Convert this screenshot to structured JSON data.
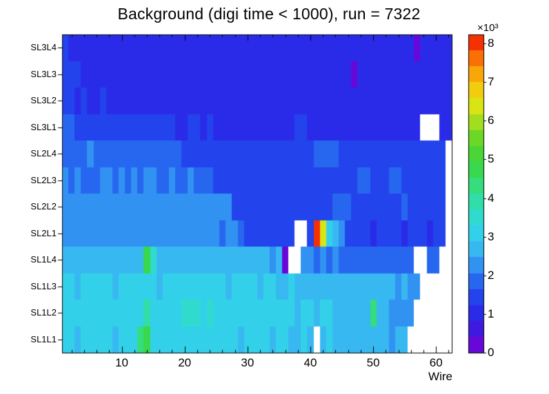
{
  "chart_data": {
    "type": "heatmap",
    "title": "Background (digi time < 1000), run = 7322",
    "xlabel": "Wire",
    "x_bins": 62,
    "x_min": 0.5,
    "x_max": 62.5,
    "x_ticks": [
      10,
      20,
      30,
      40,
      50,
      60
    ],
    "x_minor_step": 2,
    "z_min": 0,
    "z_max": 8234,
    "levels": 20,
    "colorbar": {
      "ticks": [
        0,
        1,
        2,
        3,
        4,
        5,
        6,
        7,
        8
      ],
      "tick_factor": 1000,
      "scale_label": "×10³",
      "position": "right"
    },
    "palette": [
      [
        0.0,
        "#7a00d5"
      ],
      [
        0.08,
        "#3c1be2"
      ],
      [
        0.14,
        "#2430ea"
      ],
      [
        0.2,
        "#2250ee"
      ],
      [
        0.26,
        "#2f86f2"
      ],
      [
        0.32,
        "#38b5f2"
      ],
      [
        0.38,
        "#33d4e8"
      ],
      [
        0.45,
        "#2fdfc0"
      ],
      [
        0.52,
        "#35dd80"
      ],
      [
        0.58,
        "#38d74b"
      ],
      [
        0.65,
        "#52d62a"
      ],
      [
        0.72,
        "#9cdc20"
      ],
      [
        0.78,
        "#e0e414"
      ],
      [
        0.84,
        "#f6c50c"
      ],
      [
        0.9,
        "#fb8f06"
      ],
      [
        0.95,
        "#fb5203"
      ],
      [
        1.0,
        "#ee1000"
      ]
    ],
    "row_order": "bottom-to-top",
    "rows": [
      {
        "label": "SL1L1",
        "values": [
          3000,
          2900,
          2760,
          2950,
          2900,
          3050,
          2920,
          2970,
          2860,
          3000,
          2950,
          3050,
          4400,
          4650,
          3250,
          3050,
          3000,
          2950,
          2900,
          3200,
          3250,
          3160,
          3200,
          3050,
          2950,
          2900,
          3000,
          2950,
          2860,
          2950,
          3000,
          2900,
          2950,
          2860,
          2900,
          2950,
          2800,
          2860,
          2900,
          2850,
          null,
          2800,
          2900,
          2760,
          2800,
          2600,
          2520,
          2600,
          2560,
          2650,
          2500,
          2600,
          2460,
          2550,
          2500,
          null,
          null,
          null,
          null,
          null,
          null,
          null
        ]
      },
      {
        "label": "SL1L2",
        "values": [
          3000,
          2950,
          3100,
          2900,
          3050,
          2960,
          3000,
          2900,
          3060,
          3000,
          2950,
          3100,
          3050,
          4100,
          3200,
          3000,
          2950,
          3060,
          3000,
          3300,
          3350,
          3300,
          3250,
          3300,
          3000,
          2950,
          3060,
          3000,
          2900,
          3000,
          2950,
          3060,
          2900,
          3000,
          2950,
          2900,
          3000,
          2860,
          2950,
          2900,
          2860,
          2950,
          2900,
          2800,
          2860,
          2760,
          2800,
          2700,
          2760,
          4200,
          2650,
          2600,
          2460,
          2400,
          2360,
          2300,
          null,
          null,
          null,
          null,
          null,
          null
        ]
      },
      {
        "label": "SL1L3",
        "values": [
          2910,
          3000,
          2850,
          2950,
          3050,
          2910,
          3000,
          2950,
          2850,
          3000,
          2950,
          3050,
          3000,
          2910,
          2950,
          2850,
          3000,
          2910,
          2950,
          3000,
          3100,
          3050,
          2950,
          2910,
          3000,
          2950,
          2850,
          2910,
          3000,
          2950,
          2910,
          2850,
          2950,
          2910,
          2810,
          2850,
          2910,
          2750,
          2850,
          2810,
          2750,
          2850,
          2810,
          2710,
          2750,
          2650,
          2710,
          2610,
          2650,
          2550,
          2650,
          2510,
          2550,
          2450,
          2510,
          2410,
          2450,
          null,
          null,
          null,
          null,
          null
        ]
      },
      {
        "label": "SL1L4",
        "values": [
          2650,
          2600,
          2700,
          2560,
          2650,
          2600,
          2500,
          2650,
          2600,
          2700,
          2650,
          2560,
          2650,
          4800,
          3600,
          2700,
          2650,
          2600,
          2560,
          2650,
          2700,
          2600,
          2650,
          2560,
          2600,
          2650,
          2500,
          2600,
          2560,
          2650,
          2600,
          2500,
          2560,
          2460,
          2500,
          400,
          null,
          null,
          2100,
          2150,
          2050,
          2100,
          2000,
          2100,
          2050,
          1950,
          2000,
          1900,
          1950,
          2000,
          1900,
          1860,
          1950,
          1900,
          1860,
          1800,
          null,
          null,
          1950,
          1900,
          null,
          null
        ]
      },
      {
        "label": "SL2L1",
        "values": [
          2200,
          2150,
          2250,
          2100,
          2200,
          2150,
          2060,
          2150,
          2200,
          2100,
          2150,
          2250,
          2150,
          2100,
          2200,
          2150,
          2060,
          2150,
          2100,
          2200,
          2150,
          2100,
          2060,
          2150,
          2100,
          2000,
          2100,
          2060,
          1960,
          1400,
          1360,
          1300,
          1400,
          1360,
          1260,
          1360,
          1300,
          null,
          null,
          1400,
          8234,
          6300,
          3050,
          2860,
          2400,
          1300,
          1260,
          1350,
          1300,
          1210,
          1300,
          1260,
          1350,
          1300,
          1210,
          1260,
          1300,
          1260,
          1210,
          1260,
          1300,
          null
        ]
      },
      {
        "label": "SL2L2",
        "values": [
          2100,
          2200,
          2150,
          2250,
          2150,
          2100,
          2200,
          2150,
          2100,
          2150,
          2250,
          2150,
          2200,
          2100,
          2150,
          2200,
          2100,
          2150,
          2200,
          2300,
          2350,
          2300,
          2250,
          2150,
          2100,
          2150,
          2100,
          1550,
          1500,
          1460,
          1550,
          1500,
          1400,
          1500,
          1460,
          1550,
          1500,
          1460,
          1500,
          1550,
          1460,
          1500,
          1460,
          1900,
          1950,
          1860,
          1500,
          1460,
          1500,
          1400,
          1460,
          1500,
          1460,
          1400,
          1860,
          1460,
          1500,
          1400,
          1460,
          1400,
          1460,
          null
        ]
      },
      {
        "label": "SL2L3",
        "values": [
          2060,
          2000,
          2100,
          1960,
          1700,
          1760,
          2060,
          2100,
          2000,
          2060,
          1960,
          2060,
          2000,
          2100,
          2060,
          1960,
          2000,
          2060,
          1960,
          2000,
          2060,
          1960,
          2000,
          1960,
          1500,
          1460,
          1400,
          1500,
          1460,
          1400,
          1460,
          1500,
          1400,
          1460,
          1400,
          1500,
          1460,
          1400,
          1460,
          1400,
          1360,
          1460,
          1400,
          1500,
          1460,
          1400,
          1460,
          1800,
          1760,
          1400,
          1460,
          1400,
          1860,
          1800,
          1400,
          1460,
          1400,
          1360,
          1400,
          1360,
          1400,
          null
        ]
      },
      {
        "label": "SL2L4",
        "values": [
          1950,
          2000,
          1900,
          1950,
          2060,
          1950,
          1900,
          2000,
          1950,
          1860,
          1950,
          1900,
          2000,
          1950,
          1900,
          1950,
          1860,
          1950,
          1900,
          1380,
          1340,
          1300,
          1360,
          1320,
          1280,
          1340,
          1300,
          1360,
          1300,
          1260,
          1320,
          1360,
          1300,
          1340,
          1280,
          1320,
          1360,
          1300,
          1260,
          1320,
          1700,
          1750,
          1680,
          1720,
          1300,
          1340,
          1280,
          1320,
          1360,
          1300,
          1260,
          1320,
          1280,
          1340,
          1300,
          1260,
          1320,
          1280,
          1340,
          1300,
          1260,
          null
        ]
      },
      {
        "label": "SL3L1",
        "values": [
          1750,
          1700,
          1400,
          1350,
          1300,
          1400,
          1350,
          1300,
          1350,
          1400,
          1300,
          1350,
          1300,
          1400,
          1350,
          1300,
          1350,
          1300,
          1080,
          1050,
          1250,
          1280,
          1230,
          1260,
          1050,
          1080,
          1020,
          1060,
          1100,
          1040,
          1080,
          1020,
          1060,
          1100,
          1040,
          1000,
          1060,
          1400,
          1350,
          1050,
          1080,
          1020,
          1060,
          1000,
          1050,
          1080,
          1020,
          1060,
          1000,
          1040,
          1080,
          1020,
          1060,
          1000,
          1040,
          1080,
          1020,
          null,
          null,
          null,
          1000,
          1050
        ]
      },
      {
        "label": "SL3L2",
        "values": [
          1550,
          1250,
          1200,
          1250,
          1200,
          1150,
          1250,
          1200,
          960,
          1000,
          950,
          980,
          1000,
          950,
          980,
          1000,
          950,
          1150,
          1200,
          1150,
          1180,
          1150,
          980,
          950,
          1000,
          960,
          980,
          950,
          1000,
          960,
          920,
          980,
          950,
          1000,
          1150,
          960,
          980,
          950,
          920,
          980,
          950,
          960,
          1000,
          950,
          980,
          960,
          920,
          980,
          950,
          1000,
          960,
          980,
          950,
          920,
          960,
          980,
          950,
          920,
          960,
          950,
          980,
          950
        ]
      },
      {
        "label": "SL3L3",
        "values": [
          1450,
          1400,
          1350,
          920,
          950,
          900,
          930,
          950,
          900,
          1100,
          1150,
          920,
          950,
          900,
          930,
          900,
          950,
          920,
          880,
          930,
          900,
          950,
          920,
          880,
          920,
          950,
          900,
          930,
          880,
          920,
          900,
          950,
          920,
          880,
          930,
          900,
          920,
          950,
          900,
          880,
          930,
          900,
          920,
          900,
          930,
          900,
          350,
          880,
          920,
          950,
          900,
          930,
          900,
          880,
          930,
          900,
          920,
          880,
          930,
          900,
          920,
          900
        ]
      },
      {
        "label": "SL3L4",
        "values": [
          1320,
          1050,
          1000,
          980,
          920,
          900,
          930,
          900,
          950,
          920,
          880,
          930,
          1100,
          900,
          920,
          950,
          900,
          880,
          930,
          900,
          920,
          880,
          950,
          900,
          930,
          920,
          880,
          900,
          950,
          920,
          900,
          880,
          930,
          900,
          920,
          950,
          880,
          900,
          930,
          920,
          900,
          880,
          950,
          900,
          920,
          930,
          880,
          900,
          920,
          950,
          900,
          880,
          930,
          900,
          920,
          900,
          300,
          900,
          920,
          1100,
          1050,
          950
        ]
      }
    ]
  }
}
